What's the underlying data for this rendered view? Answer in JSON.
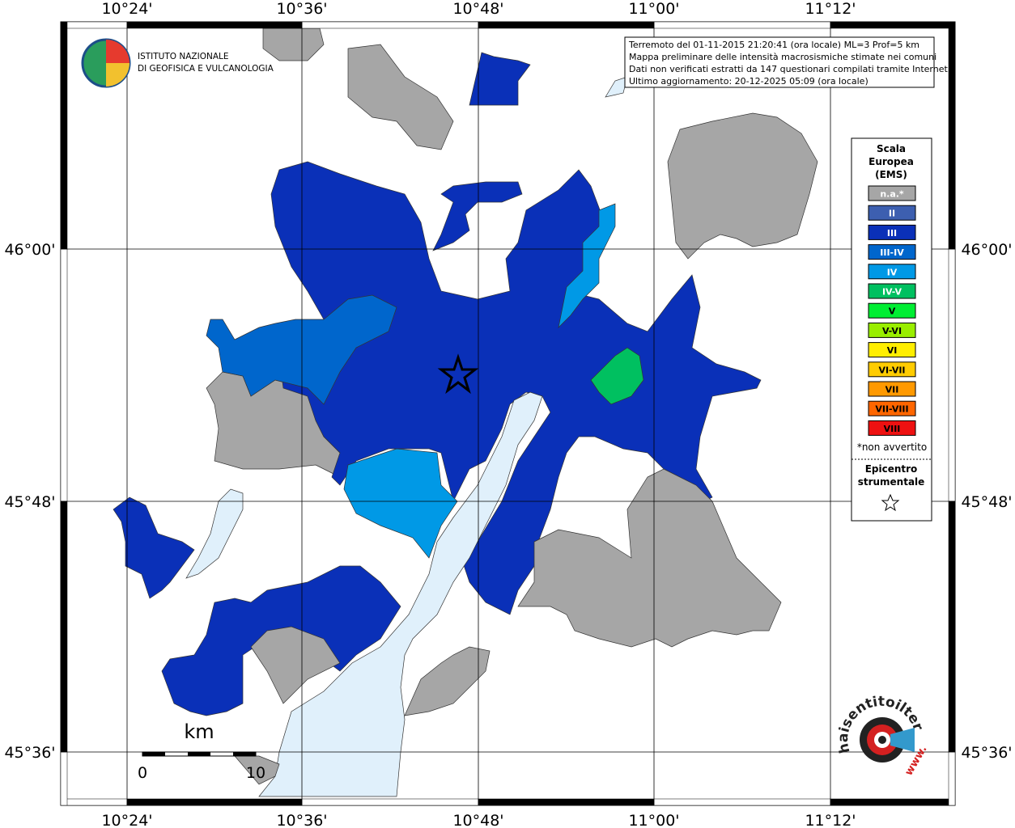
{
  "map": {
    "logo": {
      "line1": "ISTITUTO NAZIONALE",
      "line2": "DI GEOFISICA E VULCANOLOGIA"
    },
    "info": [
      "Terremoto del 01-11-2015 21:20:41 (ora locale) ML=3 Prof=5 km",
      "Mappa preliminare delle intensità macrosismiche stimate nei comuni",
      "Dati non verificati estratti da 147 questionari compilati tramite Internet.",
      "Ultimo aggiornamento: 20-12-2025 05:09 (ora locale)"
    ],
    "longitudes": [
      "10°24'",
      "10°36'",
      "10°48'",
      "11°00'",
      "11°12'"
    ],
    "latitudes": [
      "46°00'",
      "45°48'",
      "45°36'"
    ],
    "legend": {
      "title": [
        "Scala",
        "Europea",
        "(EMS)"
      ],
      "items": [
        {
          "label": "n.a.*",
          "color": "#a6a6a6"
        },
        {
          "label": "II",
          "color": "#3d5fb0"
        },
        {
          "label": "III",
          "color": "#0a30b8"
        },
        {
          "label": "III-IV",
          "color": "#0066cc"
        },
        {
          "label": "IV",
          "color": "#0099e6"
        },
        {
          "label": "IV-V",
          "color": "#00c060"
        },
        {
          "label": "V",
          "color": "#00ee33"
        },
        {
          "label": "V-VI",
          "color": "#99ee00"
        },
        {
          "label": "VI",
          "color": "#ffee00"
        },
        {
          "label": "VI-VII",
          "color": "#ffcc00"
        },
        {
          "label": "VII",
          "color": "#ff9900"
        },
        {
          "label": "VII-VIII",
          "color": "#ff6600"
        },
        {
          "label": "VIII",
          "color": "#ee1111"
        }
      ],
      "note": "*non avvertito",
      "epicenter": [
        "Epicentro",
        "strumentale"
      ]
    },
    "scale": {
      "unit": "km",
      "start": "0",
      "end": "10"
    },
    "brand": {
      "text": "haisentitoilterremoto.it",
      "prefix": "www."
    }
  }
}
